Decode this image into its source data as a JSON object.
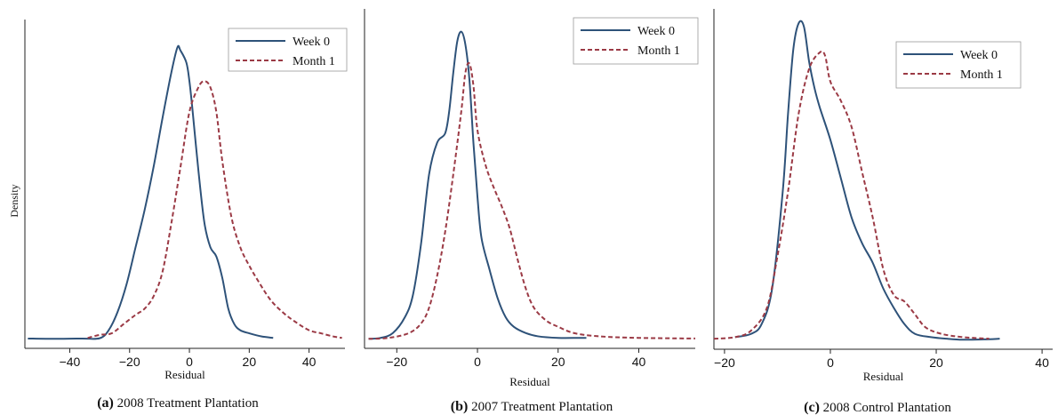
{
  "chart_data": [
    {
      "type": "line",
      "caption_label": "(a)",
      "caption_text": "2008 Treatment Plantation",
      "xlabel": "Residual",
      "ylabel": "Density",
      "xticks": [
        -40,
        -20,
        0,
        20,
        40
      ],
      "xlim": [
        -55,
        52
      ],
      "ylim": [
        0,
        1
      ],
      "legend_position": "top-right",
      "series": [
        {
          "name": "Week 0",
          "color": "#2e5279",
          "style": "solid",
          "x": [
            -54,
            -45,
            -36,
            -30,
            -27,
            -24,
            -21,
            -18,
            -15,
            -12,
            -9,
            -6,
            -4,
            -3,
            -1,
            0,
            1,
            3,
            5,
            7,
            9,
            11,
            13,
            15,
            17,
            20,
            24,
            28
          ],
          "y": [
            0.003,
            0.002,
            0.003,
            0.004,
            0.03,
            0.09,
            0.18,
            0.3,
            0.42,
            0.56,
            0.72,
            0.87,
            0.95,
            0.94,
            0.9,
            0.84,
            0.75,
            0.55,
            0.38,
            0.3,
            0.27,
            0.2,
            0.1,
            0.05,
            0.03,
            0.02,
            0.01,
            0.005
          ]
        },
        {
          "name": "Month 1",
          "color": "#9b3a45",
          "style": "dashed",
          "x": [
            -34,
            -30,
            -26,
            -22,
            -18,
            -15,
            -12,
            -9,
            -6,
            -3,
            0,
            3,
            5,
            7,
            9,
            11,
            14,
            17,
            20,
            23,
            27,
            31,
            35,
            40,
            44,
            48,
            51
          ],
          "y": [
            0.005,
            0.015,
            0.02,
            0.05,
            0.08,
            0.1,
            0.14,
            0.22,
            0.38,
            0.56,
            0.74,
            0.82,
            0.84,
            0.82,
            0.74,
            0.58,
            0.4,
            0.3,
            0.24,
            0.19,
            0.13,
            0.09,
            0.06,
            0.03,
            0.02,
            0.01,
            0.005
          ]
        }
      ]
    },
    {
      "type": "line",
      "caption_label": "(b)",
      "caption_text": "2007 Treatment Plantation",
      "xlabel": "Residual",
      "ylabel": "",
      "xticks": [
        -20,
        0,
        20,
        40
      ],
      "xlim": [
        -28,
        54
      ],
      "ylim": [
        0,
        1
      ],
      "legend_position": "top-right",
      "series": [
        {
          "name": "Week 0",
          "color": "#2e5279",
          "style": "solid",
          "x": [
            -27,
            -24,
            -21,
            -18,
            -16,
            -14,
            -12,
            -10,
            -8,
            -7,
            -6,
            -5,
            -4,
            -3,
            -2,
            -1,
            0,
            1,
            3,
            5,
            7,
            9,
            12,
            15,
            20,
            25,
            27
          ],
          "y": [
            0.002,
            0.005,
            0.02,
            0.07,
            0.14,
            0.3,
            0.52,
            0.62,
            0.65,
            0.72,
            0.84,
            0.94,
            0.97,
            0.93,
            0.82,
            0.62,
            0.45,
            0.32,
            0.22,
            0.13,
            0.07,
            0.04,
            0.02,
            0.01,
            0.005,
            0.005,
            0.005
          ]
        },
        {
          "name": "Month 1",
          "color": "#9b3a45",
          "style": "dashed",
          "x": [
            -27,
            -22,
            -17,
            -14,
            -12,
            -10,
            -8,
            -6,
            -4,
            -3,
            -2,
            -1,
            0,
            2,
            4,
            6,
            8,
            10,
            12,
            14,
            17,
            20,
            24,
            30,
            40,
            54
          ],
          "y": [
            0.002,
            0.005,
            0.02,
            0.05,
            0.1,
            0.2,
            0.34,
            0.52,
            0.72,
            0.84,
            0.87,
            0.8,
            0.66,
            0.55,
            0.48,
            0.42,
            0.35,
            0.25,
            0.16,
            0.1,
            0.06,
            0.04,
            0.02,
            0.01,
            0.005,
            0.003
          ]
        }
      ]
    },
    {
      "type": "line",
      "caption_label": "(c)",
      "caption_text": "2008 Control Plantation",
      "xlabel": "Residual",
      "ylabel": "",
      "xticks": [
        -20,
        0,
        20,
        40
      ],
      "xlim": [
        -22,
        42
      ],
      "ylim": [
        0,
        1
      ],
      "legend_position": "top-right",
      "series": [
        {
          "name": "Week 0",
          "color": "#2e5279",
          "style": "solid",
          "x": [
            -18,
            -15,
            -13,
            -11,
            -9,
            -8,
            -7,
            -6,
            -5,
            -4,
            -3,
            -2,
            0,
            2,
            4,
            6,
            8,
            10,
            12,
            14,
            16,
            19,
            22,
            25,
            29,
            32
          ],
          "y": [
            0.01,
            0.02,
            0.05,
            0.16,
            0.46,
            0.7,
            0.9,
            0.98,
            0.97,
            0.86,
            0.78,
            0.72,
            0.62,
            0.5,
            0.38,
            0.3,
            0.24,
            0.16,
            0.1,
            0.05,
            0.02,
            0.01,
            0.005,
            0.002,
            0.003,
            0.005
          ]
        },
        {
          "name": "Month 1",
          "color": "#9b3a45",
          "style": "dashed",
          "x": [
            -22,
            -18,
            -15,
            -12,
            -10,
            -8,
            -6,
            -4,
            -2,
            -1,
            0,
            2,
            4,
            6,
            8,
            10,
            12,
            14,
            16,
            18,
            21,
            25,
            30
          ],
          "y": [
            0.005,
            0.01,
            0.03,
            0.1,
            0.26,
            0.46,
            0.7,
            0.84,
            0.89,
            0.88,
            0.8,
            0.74,
            0.66,
            0.52,
            0.38,
            0.22,
            0.14,
            0.12,
            0.08,
            0.04,
            0.02,
            0.01,
            0.005
          ]
        }
      ]
    }
  ]
}
